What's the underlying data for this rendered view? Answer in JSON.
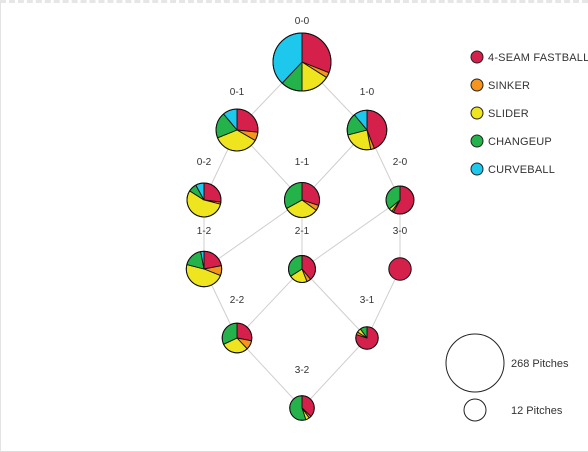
{
  "colors": {
    "4-SEAM FASTBALL": "#d4204a",
    "SINKER": "#f5951e",
    "SLIDER": "#eee51e",
    "CHANGEUP": "#24b34b",
    "CURVEBALL": "#1ec8ec"
  },
  "chart_data": {
    "type": "pie",
    "legend": {
      "placement": "top-right",
      "items": [
        {
          "name": "4-SEAM FASTBALL",
          "color": "#d4204a"
        },
        {
          "name": "SINKER",
          "color": "#f5951e"
        },
        {
          "name": "SLIDER",
          "color": "#eee51e"
        },
        {
          "name": "CHANGEUP",
          "color": "#24b34b"
        },
        {
          "name": "CURVEBALL",
          "color": "#1ec8ec"
        }
      ]
    },
    "size_legend": [
      {
        "label": "268 Pitches",
        "pitches": 268
      },
      {
        "label": "12 Pitches",
        "pitches": 12
      }
    ],
    "counts": [
      {
        "count": "0-0",
        "pitches": 268,
        "mix": {
          "4-SEAM FASTBALL": 0.31,
          "SINKER": 0.03,
          "SLIDER": 0.16,
          "CHANGEUP": 0.12,
          "CURVEBALL": 0.38
        }
      },
      {
        "count": "0-1",
        "pitches": 140,
        "mix": {
          "4-SEAM FASTBALL": 0.24,
          "SINKER": 0.06,
          "SLIDER": 0.32,
          "CHANGEUP": 0.18,
          "CURVEBALL": 0.1,
          "_sinker2": 0.1
        }
      },
      {
        "count": "1-0",
        "pitches": 125,
        "mix": {
          "4-SEAM FASTBALL": 0.44,
          "SINKER": 0.03,
          "SLIDER": 0.24,
          "CHANGEUP": 0.18,
          "CURVEBALL": 0.11
        }
      },
      {
        "count": "0-2",
        "pitches": 92,
        "mix": {
          "4-SEAM FASTBALL": 0.27,
          "SINKER": 0.02,
          "SLIDER": 0.55,
          "CHANGEUP": 0.08,
          "CURVEBALL": 0.08
        }
      },
      {
        "count": "1-1",
        "pitches": 98,
        "mix": {
          "4-SEAM FASTBALL": 0.3,
          "SINKER": 0.05,
          "SLIDER": 0.32,
          "CHANGEUP": 0.33,
          "CURVEBALL": 0
        }
      },
      {
        "count": "2-0",
        "pitches": 62,
        "mix": {
          "4-SEAM FASTBALL": 0.58,
          "SINKER": 0.02,
          "SLIDER": 0.04,
          "CHANGEUP": 0.36,
          "CURVEBALL": 0
        }
      },
      {
        "count": "1-2",
        "pitches": 100,
        "mix": {
          "4-SEAM FASTBALL": 0.22,
          "SINKER": 0.09,
          "SLIDER": 0.48,
          "CHANGEUP": 0.18,
          "CURVEBALL": 0.03
        }
      },
      {
        "count": "2-1",
        "pitches": 58,
        "mix": {
          "4-SEAM FASTBALL": 0.39,
          "SINKER": 0.05,
          "SLIDER": 0.22,
          "CHANGEUP": 0.34,
          "CURVEBALL": 0
        }
      },
      {
        "count": "3-0",
        "pitches": 40,
        "mix": {
          "4-SEAM FASTBALL": 1.0,
          "SINKER": 0,
          "SLIDER": 0,
          "CHANGEUP": 0,
          "CURVEBALL": 0
        }
      },
      {
        "count": "2-2",
        "pitches": 70,
        "mix": {
          "4-SEAM FASTBALL": 0.28,
          "SINKER": 0.1,
          "SLIDER": 0.3,
          "CHANGEUP": 0.32,
          "CURVEBALL": 0
        }
      },
      {
        "count": "3-1",
        "pitches": 40,
        "mix": {
          "4-SEAM FASTBALL": 0.8,
          "SINKER": 0.04,
          "SLIDER": 0.06,
          "CHANGEUP": 0.1,
          "CURVEBALL": 0
        }
      },
      {
        "count": "3-2",
        "pitches": 48,
        "mix": {
          "4-SEAM FASTBALL": 0.37,
          "SINKER": 0.03,
          "SLIDER": 0.05,
          "CHANGEUP": 0.55,
          "CURVEBALL": 0
        }
      }
    ],
    "edges": [
      [
        "0-0",
        "0-1"
      ],
      [
        "0-0",
        "1-0"
      ],
      [
        "0-1",
        "0-2"
      ],
      [
        "0-1",
        "1-1"
      ],
      [
        "1-0",
        "1-1"
      ],
      [
        "1-0",
        "2-0"
      ],
      [
        "0-2",
        "1-2"
      ],
      [
        "1-1",
        "1-2"
      ],
      [
        "1-1",
        "2-1"
      ],
      [
        "2-0",
        "2-1"
      ],
      [
        "2-0",
        "3-0"
      ],
      [
        "1-2",
        "2-2"
      ],
      [
        "2-1",
        "2-2"
      ],
      [
        "2-1",
        "3-1"
      ],
      [
        "3-0",
        "3-1"
      ],
      [
        "2-2",
        "3-2"
      ],
      [
        "3-1",
        "3-2"
      ]
    ]
  }
}
